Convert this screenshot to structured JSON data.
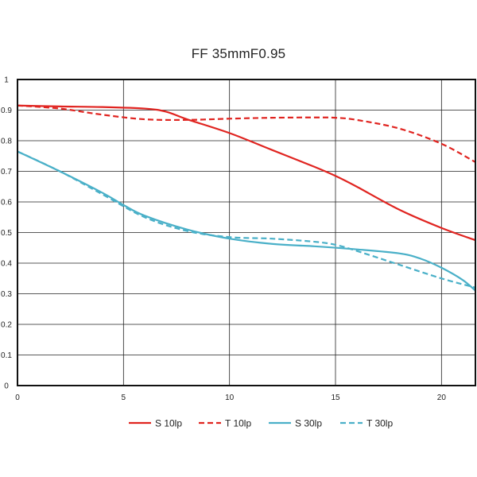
{
  "chart_data": {
    "type": "line",
    "title": "FF 35mmF0.95",
    "xlabel": "",
    "ylabel": "",
    "xlim": [
      0,
      21.6
    ],
    "ylim": [
      0,
      1
    ],
    "xticks": [
      0,
      5,
      10,
      15,
      20
    ],
    "yticks": [
      0,
      0.1,
      0.2,
      0.3,
      0.4,
      0.5,
      0.6,
      0.7,
      0.8,
      0.9,
      1
    ],
    "grid": true,
    "legend_position": "bottom",
    "series": [
      {
        "name": "S 10lp",
        "color": "#e02420",
        "dash": "solid",
        "x": [
          0,
          2,
          4,
          6,
          7,
          8,
          10,
          12,
          14,
          15,
          16,
          18,
          20,
          21.6
        ],
        "y": [
          0.915,
          0.912,
          0.91,
          0.905,
          0.895,
          0.87,
          0.825,
          0.77,
          0.715,
          0.685,
          0.65,
          0.575,
          0.515,
          0.475
        ]
      },
      {
        "name": "T 10lp",
        "color": "#e02420",
        "dash": "dashed",
        "x": [
          0,
          2,
          4,
          6,
          8,
          10,
          12,
          14,
          15,
          16,
          18,
          20,
          21.6
        ],
        "y": [
          0.915,
          0.905,
          0.885,
          0.87,
          0.868,
          0.872,
          0.875,
          0.876,
          0.875,
          0.868,
          0.84,
          0.79,
          0.73
        ]
      },
      {
        "name": "S 30lp",
        "color": "#4ab0c8",
        "dash": "solid",
        "x": [
          0,
          2,
          4,
          5,
          6,
          8,
          10,
          12,
          14,
          16,
          18,
          19,
          20,
          21,
          21.6
        ],
        "y": [
          0.765,
          0.7,
          0.63,
          0.59,
          0.555,
          0.51,
          0.48,
          0.463,
          0.455,
          0.445,
          0.432,
          0.415,
          0.385,
          0.345,
          0.31
        ]
      },
      {
        "name": "T 30lp",
        "color": "#4ab0c8",
        "dash": "dashed",
        "x": [
          0,
          2,
          4,
          6,
          8,
          10,
          12,
          14,
          15,
          16,
          18,
          20,
          21.6
        ],
        "y": [
          0.765,
          0.7,
          0.625,
          0.55,
          0.505,
          0.485,
          0.48,
          0.47,
          0.46,
          0.44,
          0.395,
          0.35,
          0.32
        ]
      }
    ]
  }
}
